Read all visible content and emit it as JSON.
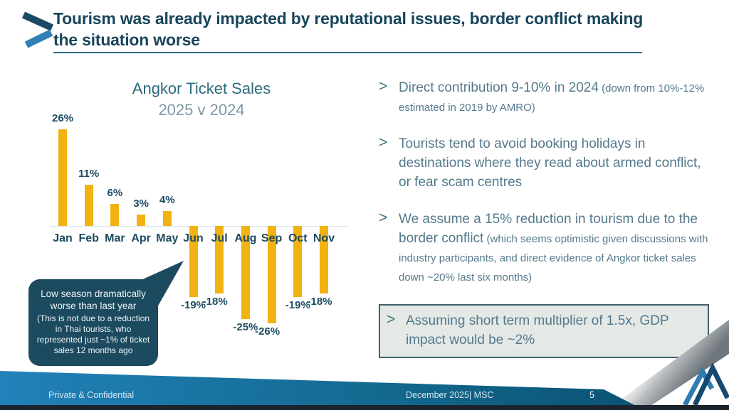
{
  "slide": {
    "title": "Tourism was already impacted by reputational issues, border conflict making the situation worse",
    "footer_left": "Private & Confidential",
    "footer_center": "December 2025| MSC",
    "page_number": "5"
  },
  "chart_data": {
    "type": "bar",
    "title": "Angkor Ticket Sales",
    "subtitle": "2025 v 2024",
    "categories": [
      "Jan",
      "Feb",
      "Mar",
      "Apr",
      "May",
      "Jun",
      "Jul",
      "Aug",
      "Sep",
      "Oct",
      "Nov"
    ],
    "values": [
      26,
      11,
      6,
      3,
      4,
      -19,
      -18,
      -25,
      -26,
      -19,
      -18
    ],
    "value_labels": [
      "26%",
      "11%",
      "6%",
      "3%",
      "4%",
      "-19%",
      "-18%",
      "-25%",
      "-26%",
      "-19%",
      "-18%"
    ],
    "bar_color": "#F2B211",
    "ylim": [
      -30,
      30
    ],
    "grid": false,
    "legend": "none"
  },
  "callout": {
    "main": "Low season dramatically worse than last year",
    "detail": "(This is not due to a reduction in Thai tourists, who represented just ~1% of ticket sales 12 months ago",
    "bg_color": "#1C4A5F"
  },
  "bullet_marker": ">",
  "bullets": [
    {
      "main": "Direct contribution 9-10% in 2024",
      "small": "(down from 10%-12% estimated in 2019 by AMRO)",
      "boxed": false
    },
    {
      "main": "Tourists tend to avoid booking holidays in destinations where they read about armed conflict, or fear scam centres",
      "small": "",
      "boxed": false
    },
    {
      "main": "We assume a 15% reduction in tourism due to the border conflict",
      "small": "(which seems optimistic given discussions with industry participants, and direct evidence of Angkor ticket sales down ~20% last six months)",
      "boxed": false
    },
    {
      "main": "Assuming short term multiplier of 1.5x, GDP impact would be ~2%",
      "small": "",
      "boxed": true
    }
  ],
  "colors": {
    "title_text": "#19455B",
    "accent_bar": "#F2B211",
    "bullet_text": "#54798C",
    "callout_bg": "#1C4A5F",
    "footer_band_left": "#2181B9",
    "footer_band_right": "#0A5273",
    "box_fill": "#E4E9E6",
    "box_border": "#41606F"
  }
}
